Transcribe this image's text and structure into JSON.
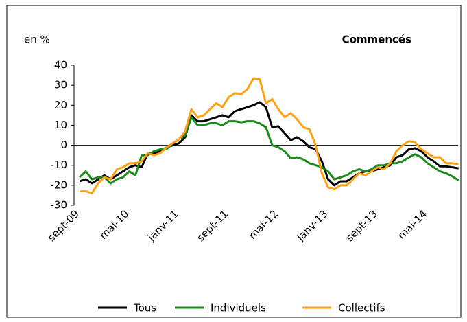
{
  "chart_data": {
    "type": "line",
    "title": "Commencés",
    "y_label": "en %",
    "categories": [
      "sept-09",
      null,
      null,
      null,
      null,
      null,
      null,
      null,
      "mai-10",
      null,
      null,
      null,
      null,
      null,
      null,
      null,
      "janv-11",
      null,
      null,
      null,
      null,
      null,
      null,
      null,
      "sept-11",
      null,
      null,
      null,
      null,
      null,
      null,
      null,
      "mai-12",
      null,
      null,
      null,
      null,
      null,
      null,
      null,
      "janv-13",
      null,
      null,
      null,
      null,
      null,
      null,
      null,
      "sept-13",
      null,
      null,
      null,
      null,
      null,
      null,
      null,
      "mai-14",
      null,
      null,
      null,
      null,
      null
    ],
    "series": [
      {
        "name": "Tous",
        "color": "#000000",
        "values": [
          -18,
          -17,
          -19,
          -17,
          -15,
          -17,
          -15,
          -13,
          -11,
          -10,
          -11,
          -4,
          -4,
          -3,
          -1,
          0,
          1,
          4,
          15,
          12,
          12,
          13,
          14,
          15,
          14,
          17,
          18,
          19,
          20,
          21.5,
          19,
          9,
          9.5,
          6,
          2.5,
          4,
          2,
          -1,
          -2,
          -8,
          -17,
          -20,
          -18,
          -18,
          -16,
          -14,
          -13,
          -13,
          -12,
          -11,
          -10,
          -6,
          -5,
          -2,
          -1.5,
          -3,
          -6,
          -8,
          -10.5,
          -10.5,
          -11,
          -11.5
        ]
      },
      {
        "name": "Individuels",
        "color": "#1a8a1a",
        "values": [
          -16,
          -13,
          -17,
          -16,
          -16,
          -19,
          -17,
          -16,
          -13,
          -15,
          -5,
          -5,
          -3,
          -2,
          -2,
          1,
          3,
          5,
          14,
          10,
          10,
          11,
          11,
          10,
          12,
          12,
          11.5,
          12,
          12,
          11,
          9,
          0,
          -1,
          -3,
          -6.5,
          -6,
          -7,
          -9,
          -10,
          -11,
          -13,
          -17,
          -16,
          -15,
          -13,
          -12,
          -13,
          -12,
          -10,
          -10,
          -9,
          -9,
          -8,
          -6,
          -4.5,
          -6,
          -9,
          -11,
          -13,
          -14,
          -15.5,
          -17.5
        ]
      },
      {
        "name": "Collectifs",
        "color": "#ffa010",
        "values": [
          -23,
          -23,
          -24,
          -19,
          -16,
          -17,
          -12,
          -11,
          -9,
          -9,
          -8,
          -4,
          -5,
          -4,
          -1,
          1,
          3,
          7,
          18,
          14,
          15,
          18,
          21,
          19,
          24,
          26,
          25.5,
          28,
          33.5,
          33,
          21,
          23,
          18,
          14,
          16,
          13,
          9,
          8,
          0,
          -14,
          -21,
          -22,
          -20,
          -20,
          -17,
          -14,
          -15,
          -13,
          -11,
          -12,
          -9,
          -3,
          0,
          2,
          1.5,
          -2,
          -4,
          -6,
          -6,
          -9,
          -9,
          -9.5
        ]
      }
    ],
    "ylim": [
      -30,
      40
    ],
    "yticks": [
      -30,
      -20,
      -10,
      0,
      10,
      20,
      30,
      40
    ]
  }
}
